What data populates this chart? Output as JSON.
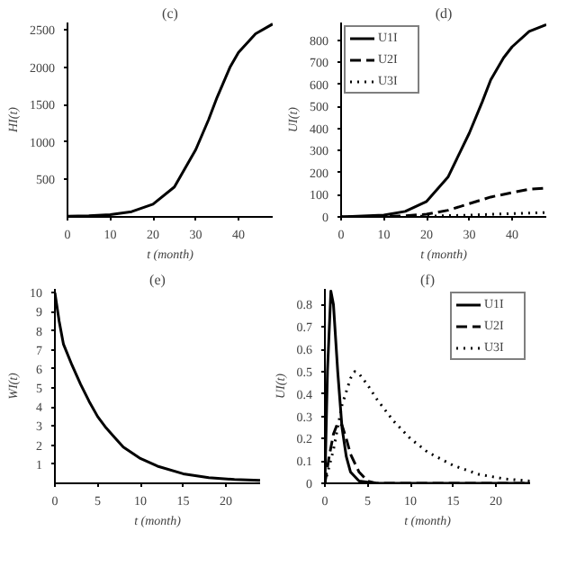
{
  "chart_data": [
    {
      "type": "line",
      "title": "(c)",
      "xlabel": "t (month)",
      "ylabel": "HI(t)",
      "xlim": [
        0,
        48
      ],
      "ylim": [
        0,
        2600
      ],
      "xticks": [
        0,
        10,
        20,
        30,
        40
      ],
      "yticks": [
        500,
        1000,
        1500,
        2000,
        2500
      ],
      "grid": false,
      "legend": false,
      "x": [
        0,
        5,
        10,
        15,
        20,
        25,
        30,
        33,
        35,
        38,
        40,
        44,
        48
      ],
      "series": [
        {
          "color": "#000000",
          "line_style": "solid",
          "values": [
            10,
            15,
            30,
            70,
            170,
            400,
            900,
            1300,
            1600,
            2000,
            2200,
            2450,
            2580
          ]
        }
      ]
    },
    {
      "type": "line",
      "title": "(d)",
      "xlabel": "t (month)",
      "ylabel": "UI(t)",
      "xlim": [
        0,
        48
      ],
      "ylim": [
        0,
        880
      ],
      "xticks": [
        0,
        10,
        20,
        30,
        40
      ],
      "yticks": [
        0,
        100,
        200,
        300,
        400,
        500,
        600,
        700,
        800
      ],
      "grid": false,
      "legend": "top left",
      "series": [
        {
          "name": "U1I",
          "color": "#000000",
          "line_style": "solid",
          "x": [
            0,
            10,
            15,
            20,
            25,
            30,
            33,
            35,
            38,
            40,
            44,
            48
          ],
          "values": [
            0,
            8,
            25,
            70,
            180,
            380,
            520,
            620,
            720,
            770,
            840,
            870
          ]
        },
        {
          "name": "U2I",
          "color": "#000000",
          "line_style": "dashed",
          "x": [
            0,
            10,
            15,
            20,
            25,
            30,
            35,
            40,
            44,
            48
          ],
          "values": [
            0,
            2,
            5,
            12,
            30,
            60,
            90,
            110,
            125,
            130
          ]
        },
        {
          "name": "U3I",
          "color": "#000000",
          "line_style": "dotted",
          "x": [
            0,
            20,
            30,
            40,
            48
          ],
          "values": [
            0,
            3,
            8,
            15,
            20
          ]
        }
      ]
    },
    {
      "type": "line",
      "title": "(e)",
      "xlabel": "t (month)",
      "ylabel": "WI(t)",
      "xlim": [
        0,
        24
      ],
      "ylim": [
        0,
        10.2
      ],
      "xticks": [
        0,
        5,
        10,
        15,
        20
      ],
      "yticks": [
        1,
        2,
        3,
        4,
        5,
        6,
        7,
        8,
        9,
        10
      ],
      "grid": false,
      "legend": false,
      "x": [
        0,
        0.5,
        1,
        2,
        3,
        4,
        5,
        6,
        7,
        8,
        10,
        12,
        15,
        18,
        21,
        24
      ],
      "series": [
        {
          "color": "#000000",
          "line_style": "solid",
          "values": [
            10,
            8.5,
            7.3,
            6.2,
            5.2,
            4.3,
            3.5,
            2.9,
            2.4,
            1.9,
            1.3,
            0.9,
            0.5,
            0.3,
            0.2,
            0.15
          ]
        }
      ]
    },
    {
      "type": "line",
      "title": "(f)",
      "xlabel": "t (month)",
      "ylabel": "UI(t)",
      "xlim": [
        0,
        24
      ],
      "ylim": [
        0,
        0.87
      ],
      "xticks": [
        0,
        5,
        10,
        15,
        20
      ],
      "yticks": [
        0,
        0.1,
        0.2,
        0.3,
        0.4,
        0.5,
        0.6,
        0.7,
        0.8
      ],
      "grid": false,
      "legend": "top right",
      "series": [
        {
          "name": "U1I",
          "color": "#000000",
          "line_style": "solid",
          "x": [
            0,
            0.3,
            0.7,
            1,
            1.5,
            2,
            2.5,
            3,
            4,
            6,
            24
          ],
          "values": [
            0,
            0.5,
            0.86,
            0.8,
            0.5,
            0.25,
            0.12,
            0.05,
            0.01,
            0,
            0
          ]
        },
        {
          "name": "U2I",
          "color": "#000000",
          "line_style": "dashed",
          "x": [
            0,
            0.5,
            1,
            1.5,
            2,
            2.5,
            3,
            4,
            5,
            6,
            24
          ],
          "values": [
            0,
            0.12,
            0.22,
            0.27,
            0.26,
            0.2,
            0.13,
            0.05,
            0.01,
            0,
            0
          ]
        },
        {
          "name": "U3I",
          "color": "#000000",
          "line_style": "dotted",
          "x": [
            0,
            1,
            2,
            3,
            3.5,
            4,
            5,
            6,
            8,
            10,
            12,
            15,
            18,
            21,
            24
          ],
          "values": [
            0,
            0.15,
            0.35,
            0.47,
            0.5,
            0.49,
            0.44,
            0.38,
            0.28,
            0.2,
            0.14,
            0.08,
            0.04,
            0.02,
            0.01
          ]
        }
      ]
    }
  ]
}
